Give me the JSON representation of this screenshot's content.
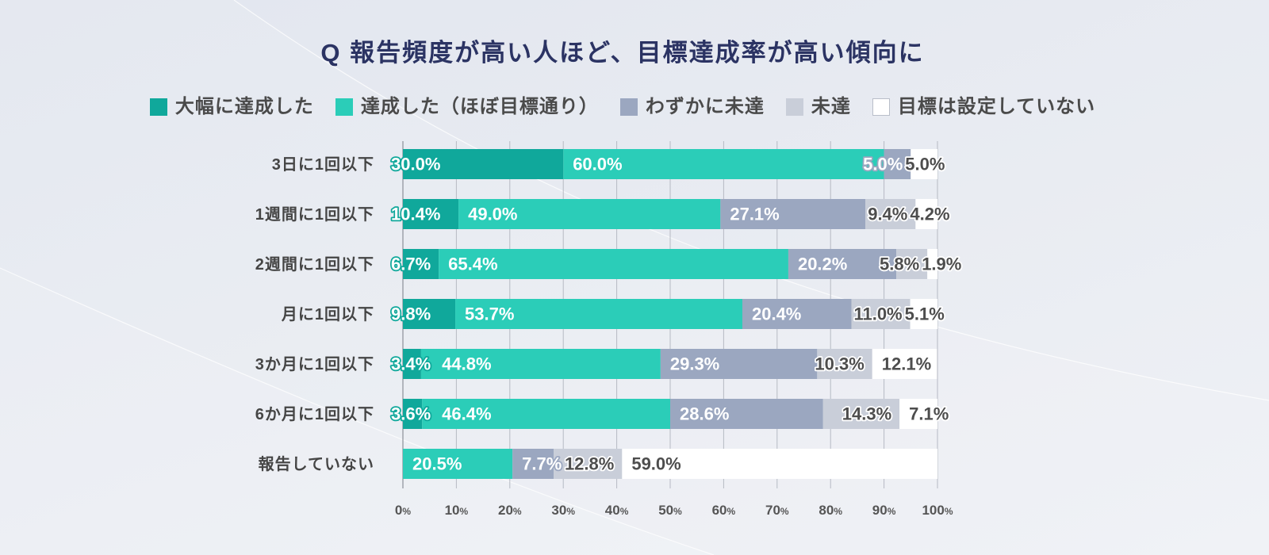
{
  "chart_data": {
    "type": "bar",
    "orientation": "horizontal",
    "stacked": true,
    "title": "Q 報告頻度が高い人ほど、目標達成率が高い傾向に",
    "categories": [
      "3日に1回以下",
      "1週間に1回以下",
      "2週間に1回以下",
      "月に1回以下",
      "3か月に1回以下",
      "6か月に1回以下",
      "報告していない"
    ],
    "series": [
      {
        "name": "大幅に達成した",
        "color": "#10a89b",
        "label_color": "#ffffff",
        "label_outline": "#10a89b",
        "values": [
          30.0,
          10.4,
          6.7,
          9.8,
          3.4,
          3.6,
          0
        ]
      },
      {
        "name": "達成した（ほぼ目標通り）",
        "color": "#2bcdb8",
        "label_color": "#ffffff",
        "label_outline": "#2bcdb8",
        "values": [
          60.0,
          49.0,
          65.4,
          53.7,
          44.8,
          46.4,
          20.5
        ]
      },
      {
        "name": "わずかに未達",
        "color": "#9ba7c0",
        "label_color": "#ffffff",
        "label_outline": "#9ba7c0",
        "values": [
          5.0,
          27.1,
          20.2,
          20.4,
          29.3,
          28.6,
          7.7
        ]
      },
      {
        "name": "未達",
        "color": "#c9ced9",
        "label_color": "#4d4d4d",
        "label_outline": "#ffffff",
        "values": [
          0,
          9.4,
          5.8,
          11.0,
          10.3,
          14.3,
          12.8
        ]
      },
      {
        "name": "目標は設定していない",
        "color": "#ffffff",
        "label_color": "#4d4d4d",
        "label_outline": "#ffffff",
        "values": [
          5.0,
          4.2,
          1.9,
          5.1,
          12.1,
          7.1,
          59.0
        ]
      }
    ],
    "xlim": [
      0,
      100
    ],
    "xticks": [
      0,
      10,
      20,
      30,
      40,
      50,
      60,
      70,
      80,
      90,
      100
    ],
    "unit": "%",
    "grid": true,
    "legend": "top"
  }
}
